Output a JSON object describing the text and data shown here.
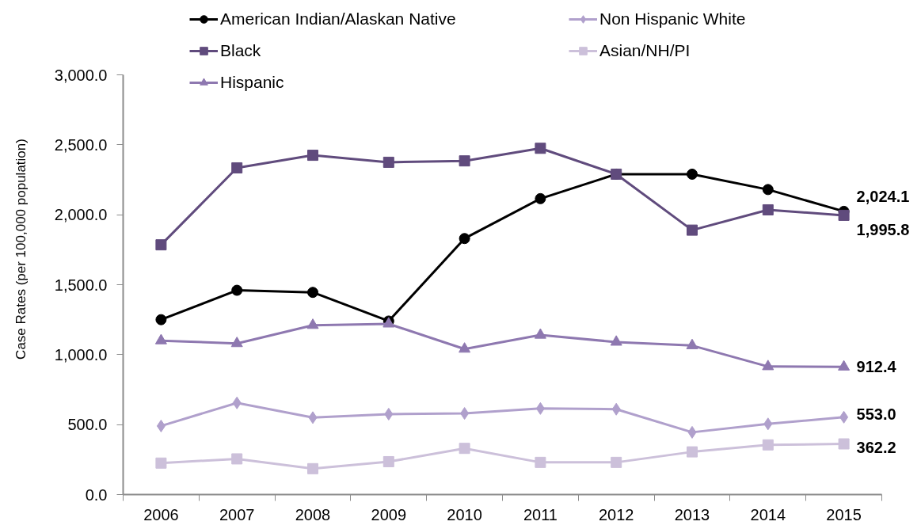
{
  "chart_data": {
    "type": "line",
    "ylabel": "Case Rates (per 100,000 population)",
    "categories": [
      "2006",
      "2007",
      "2008",
      "2009",
      "2010",
      "2011",
      "2012",
      "2013",
      "2014",
      "2015"
    ],
    "ylim": [
      0,
      3000
    ],
    "yticks": [
      {
        "value": 0,
        "label": "0.0"
      },
      {
        "value": 500,
        "label": "500.0"
      },
      {
        "value": 1000,
        "label": "1,000.0"
      },
      {
        "value": 1500,
        "label": "1,500.0"
      },
      {
        "value": 2000,
        "label": "2,000.0"
      },
      {
        "value": 2500,
        "label": "2,500.0"
      },
      {
        "value": 3000,
        "label": "3,000.0"
      }
    ],
    "grid": false,
    "legend": "top",
    "series": [
      {
        "name": "American Indian/Alaskan Native",
        "color": "#000000",
        "marker": "circle",
        "values": [
          1250,
          1460,
          1445,
          1240,
          1830,
          2115,
          2290,
          2290,
          2180,
          2024.1
        ],
        "value_labels": [
          null,
          null,
          null,
          null,
          null,
          null,
          null,
          null,
          null,
          "2,024.1"
        ]
      },
      {
        "name": "Black",
        "color": "#604b7d",
        "marker": "square",
        "values": [
          1785,
          2335,
          2425,
          2375,
          2385,
          2475,
          2290,
          1890,
          2035,
          1995.8
        ],
        "value_labels": [
          null,
          null,
          null,
          null,
          null,
          null,
          null,
          null,
          null,
          "1,995.8"
        ]
      },
      {
        "name": "Hispanic",
        "color": "#8e78b0",
        "marker": "triangle",
        "values": [
          1100,
          1080,
          1210,
          1220,
          1040,
          1140,
          1090,
          1065,
          915,
          912.4
        ],
        "value_labels": [
          null,
          null,
          null,
          null,
          null,
          null,
          null,
          null,
          null,
          "912.4"
        ]
      },
      {
        "name": "Non Hispanic White",
        "color": "#b0a0cc",
        "marker": "diamond",
        "values": [
          490,
          655,
          550,
          575,
          580,
          615,
          610,
          445,
          505,
          553.0
        ],
        "value_labels": [
          null,
          null,
          null,
          null,
          null,
          null,
          null,
          null,
          null,
          "553.0"
        ]
      },
      {
        "name": "Asian/NH/PI",
        "color": "#ccc0da",
        "marker": "square",
        "values": [
          225,
          255,
          185,
          235,
          330,
          230,
          230,
          305,
          355,
          362.2
        ],
        "value_labels": [
          null,
          null,
          null,
          null,
          null,
          null,
          null,
          null,
          null,
          "362.2"
        ]
      }
    ]
  }
}
